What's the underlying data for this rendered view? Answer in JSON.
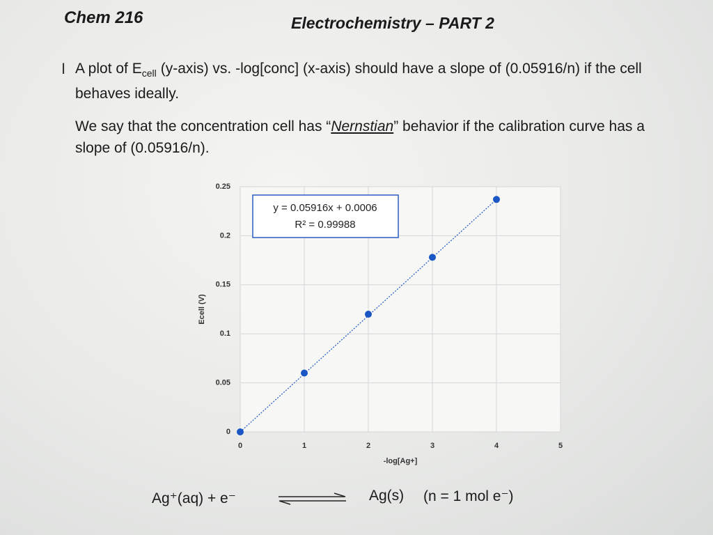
{
  "header": {
    "course": "Chem 216",
    "title": "Electrochemistry – PART 2"
  },
  "paragraph_1": {
    "prefix": "A plot of E",
    "subscript": "cell",
    "rest": "(y-axis) vs. -log[conc] (x-axis) should have a slope of (0.05916/n) if the cell behaves ideally."
  },
  "paragraph_2": {
    "before": "We say that the concentration cell has “",
    "term": "Nernstian",
    "after": "” behavior if the calibration curve has a slope of (0.05916/n)."
  },
  "chart_data": {
    "type": "scatter",
    "x": [
      0,
      1,
      2,
      3,
      4
    ],
    "values": [
      0,
      0.06,
      0.12,
      0.178,
      0.237
    ],
    "color": "#1a56c4",
    "xlim": [
      0,
      5
    ],
    "ylim": [
      0,
      0.25
    ],
    "xticks": [
      0,
      1,
      2,
      3,
      4,
      5
    ],
    "yticks": [
      0,
      0.05,
      0.1,
      0.15,
      0.2,
      0.25
    ],
    "grid": true,
    "trendline": true,
    "xlabel": "-log[Ag+]",
    "ylabel": "Ecell (V)",
    "annotation": [
      "y = 0.05916x + 0.0006",
      "R² = 0.99988"
    ]
  },
  "equation": {
    "left": "Ag⁺(aq) + e⁻",
    "right": "Ag(s)",
    "note": "(n = 1 mol e⁻)"
  }
}
